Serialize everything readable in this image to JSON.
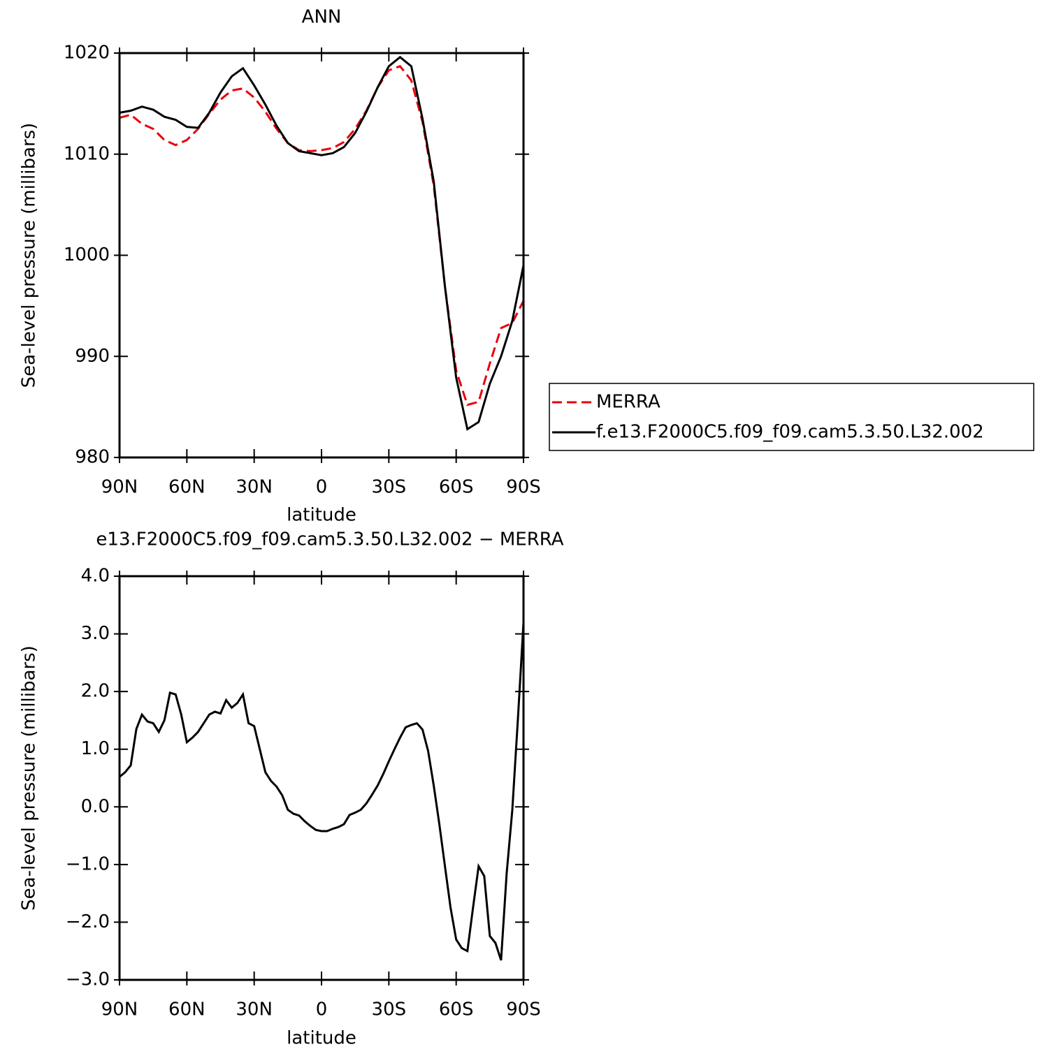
{
  "chart_data": [
    {
      "type": "line",
      "title": "ANN",
      "xlabel": "latitude",
      "ylabel": "Sea-level pressure (millibars)",
      "x": [
        90,
        85,
        80,
        75,
        70,
        65,
        60,
        55,
        50,
        45,
        40,
        35,
        30,
        25,
        20,
        15,
        10,
        5,
        0,
        -5,
        -10,
        -15,
        -20,
        -25,
        -30,
        -35,
        -40,
        -45,
        -50,
        -55,
        -60,
        -65,
        -70,
        -75,
        -80,
        -85,
        -90
      ],
      "xlim": [
        90,
        -90
      ],
      "xticks": [
        {
          "value": 90,
          "label": "90N"
        },
        {
          "value": 60,
          "label": "60N"
        },
        {
          "value": 30,
          "label": "30N"
        },
        0,
        {
          "value": -30,
          "label": "30S"
        },
        {
          "value": -60,
          "label": "60S"
        },
        {
          "value": -90,
          "label": "90S"
        }
      ],
      "ylim": [
        980,
        1020
      ],
      "yticks": [
        980,
        990,
        1000,
        1010,
        1020
      ],
      "legend": "right",
      "series": [
        {
          "name": "MERRA",
          "color": "#e8000b",
          "line_style": "dashed",
          "values": [
            1013.6,
            1013.9,
            1013.0,
            1012.5,
            1011.4,
            1010.9,
            1011.4,
            1012.5,
            1014.0,
            1015.4,
            1016.3,
            1016.5,
            1015.6,
            1014.2,
            1012.5,
            1011.1,
            1010.4,
            1010.3,
            1010.4,
            1010.6,
            1011.2,
            1012.5,
            1014.3,
            1016.6,
            1018.3,
            1018.7,
            1017.3,
            1013.2,
            1006.9,
            996.9,
            988.6,
            985.2,
            985.5,
            989.3,
            992.8,
            993.3,
            995.5
          ]
        },
        {
          "name": "f.e13.F2000C5.f09_f09.cam5.3.50.L32.002",
          "color": "#000000",
          "line_style": "solid",
          "values": [
            1014.1,
            1014.3,
            1014.7,
            1014.4,
            1013.7,
            1013.4,
            1012.7,
            1012.6,
            1014.1,
            1016.1,
            1017.7,
            1018.5,
            1016.8,
            1014.9,
            1012.8,
            1011.1,
            1010.3,
            1010.1,
            1009.9,
            1010.1,
            1010.7,
            1012.1,
            1014.2,
            1016.6,
            1018.7,
            1019.6,
            1018.7,
            1013.5,
            1007.3,
            996.9,
            987.9,
            982.8,
            983.5,
            987.3,
            990.0,
            993.5,
            999.0
          ]
        }
      ]
    },
    {
      "type": "line",
      "title": "e13.F2000C5.f09_f09.cam5.3.50.L32.002 − MERRA",
      "xlabel": "latitude",
      "ylabel": "Sea-level pressure (millibars)",
      "x": [
        90,
        87.5,
        85,
        82.5,
        80,
        77.5,
        75,
        72.5,
        70,
        67.5,
        65,
        62.5,
        60,
        57.5,
        55,
        52.5,
        50,
        47.5,
        45,
        42.5,
        40,
        37.5,
        35,
        32.5,
        30,
        27.5,
        25,
        22.5,
        20,
        17.5,
        15,
        12.5,
        10,
        7.5,
        5,
        2.5,
        0,
        -2.5,
        -5,
        -7.5,
        -10,
        -12.5,
        -15,
        -17.5,
        -20,
        -22.5,
        -25,
        -27.5,
        -30,
        -32.5,
        -35,
        -37.5,
        -40,
        -42.5,
        -45,
        -47.5,
        -50,
        -52.5,
        -55,
        -57.5,
        -60,
        -62.5,
        -65,
        -67.5,
        -70,
        -72.5,
        -75,
        -77.5,
        -80,
        -82.5,
        -85,
        -87.5,
        -90
      ],
      "xlim": [
        90,
        -90
      ],
      "xticks": [
        {
          "value": 90,
          "label": "90N"
        },
        {
          "value": 60,
          "label": "60N"
        },
        {
          "value": 30,
          "label": "30N"
        },
        0,
        {
          "value": -30,
          "label": "30S"
        },
        {
          "value": -60,
          "label": "60S"
        },
        {
          "value": -90,
          "label": "90S"
        }
      ],
      "ylim": [
        -3,
        4
      ],
      "yticks": [
        {
          "value": -3,
          "label": "−3.0"
        },
        {
          "value": -2,
          "label": "−2.0"
        },
        {
          "value": -1,
          "label": "−1.0"
        },
        {
          "value": 0,
          "label": "0.0"
        },
        {
          "value": 1,
          "label": "1.0"
        },
        {
          "value": 2,
          "label": "2.0"
        },
        {
          "value": 3,
          "label": "3.0"
        },
        {
          "value": 4,
          "label": "4.0"
        }
      ],
      "series": [
        {
          "color": "#000000",
          "line_style": "solid",
          "values": [
            0.52,
            0.6,
            0.72,
            1.35,
            1.6,
            1.48,
            1.45,
            1.3,
            1.5,
            1.98,
            1.95,
            1.6,
            1.12,
            1.2,
            1.3,
            1.45,
            1.6,
            1.65,
            1.62,
            1.85,
            1.72,
            1.8,
            1.95,
            1.45,
            1.4,
            1.0,
            0.6,
            0.45,
            0.35,
            0.2,
            -0.05,
            -0.12,
            -0.15,
            -0.25,
            -0.33,
            -0.4,
            -0.42,
            -0.42,
            -0.38,
            -0.35,
            -0.3,
            -0.14,
            -0.1,
            -0.05,
            0.06,
            0.21,
            0.37,
            0.57,
            0.79,
            1.0,
            1.2,
            1.38,
            1.42,
            1.45,
            1.34,
            0.97,
            0.37,
            -0.3,
            -1.03,
            -1.75,
            -2.3,
            -2.45,
            -2.5,
            -1.75,
            -1.03,
            -1.2,
            -2.24,
            -2.36,
            -2.66,
            -1.15,
            -0.06,
            1.52,
            3.2
          ]
        }
      ]
    }
  ]
}
